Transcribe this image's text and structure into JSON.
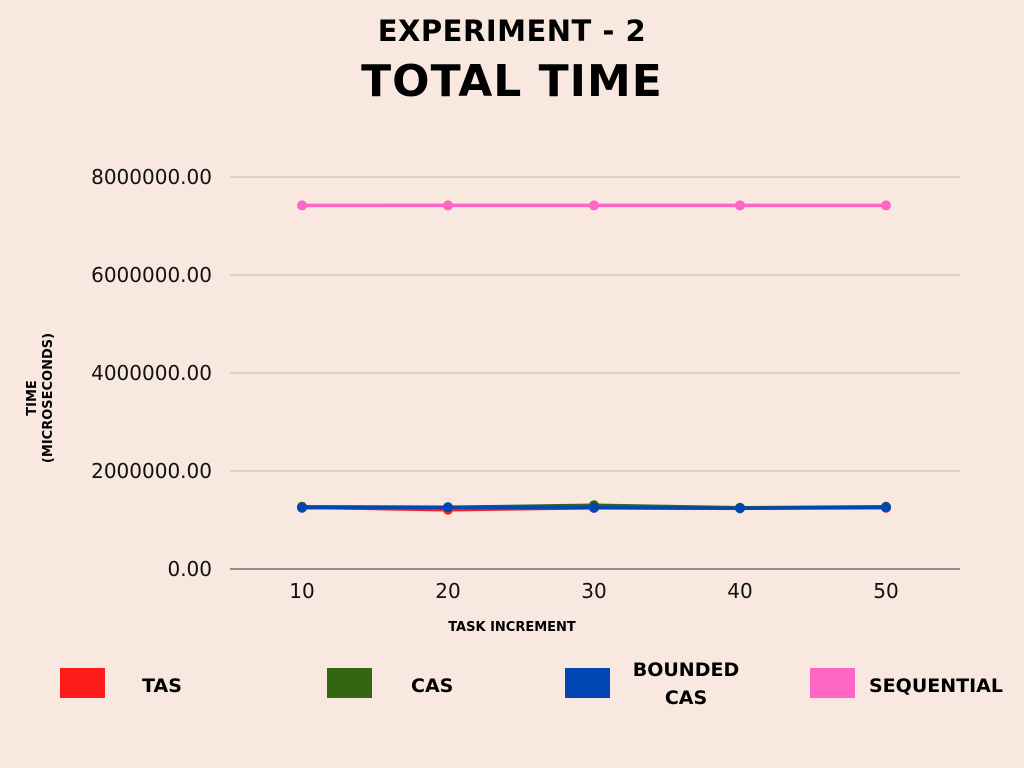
{
  "chart_data": {
    "type": "line",
    "subtitle": "EXPERIMENT - 2",
    "title": "TOTAL TIME",
    "xlabel": "TASK INCREMENT",
    "ylabel_lines": [
      "TIME",
      "(MICROSECONDS)"
    ],
    "x": [
      10,
      20,
      30,
      40,
      50
    ],
    "x_tick_labels": [
      "10",
      "20",
      "30",
      "40",
      "50"
    ],
    "ylim": [
      0,
      8000000
    ],
    "y_ticks": [
      0,
      2000000,
      4000000,
      6000000,
      8000000
    ],
    "y_tick_labels": [
      "0.00",
      "2000000.00",
      "4000000.00",
      "6000000.00",
      "8000000.00"
    ],
    "grid": true,
    "legend_position": "bottom",
    "series": [
      {
        "name": "TAS",
        "color": "#ff1a1a",
        "values": [
          1260000,
          1210000,
          1250000,
          1240000,
          1250000
        ]
      },
      {
        "name": "CAS",
        "color": "#336611",
        "values": [
          1270000,
          1260000,
          1300000,
          1250000,
          1270000
        ]
      },
      {
        "name": "BOUNDED CAS",
        "legend_lines": [
          "BOUNDED",
          "CAS"
        ],
        "color": "#0047b3",
        "values": [
          1250000,
          1260000,
          1250000,
          1240000,
          1260000
        ]
      },
      {
        "name": "SEQUENTIAL",
        "color": "#ff66c4",
        "values": [
          7420000,
          7420000,
          7420000,
          7420000,
          7420000
        ]
      }
    ]
  }
}
